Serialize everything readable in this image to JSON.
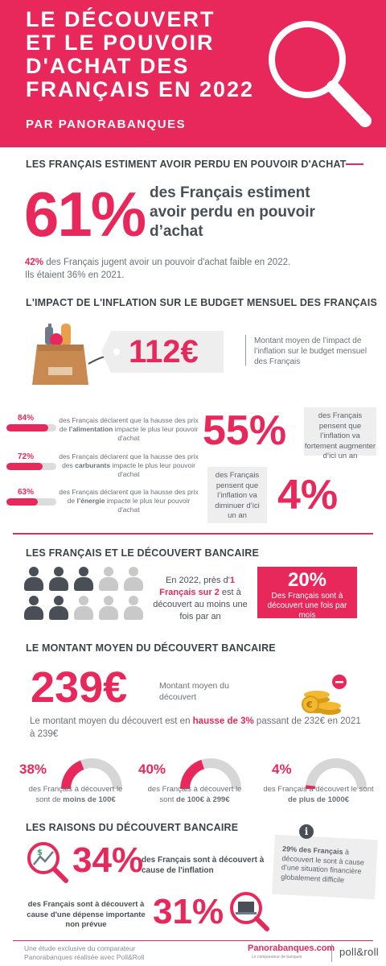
{
  "header": {
    "title_lines": [
      "LE DÉCOUVERT",
      "ET LE POUVOIR",
      "D'ACHAT DES",
      "FRANÇAIS EN 2022"
    ],
    "subtitle": "PAR PANORABANQUES"
  },
  "section1": {
    "title": "LES FRANÇAIS ESTIMENT AVOIR PERDU EN POUVOIR D'ACHAT",
    "big_value": "61%",
    "big_text": "des Français estiment avoir perdu en pouvoir d’achat",
    "stat_pct": "42%",
    "stat_text": " des Français jugent avoir un pouvoir d'achat faible",
    "stat_text_after": " en 2022.",
    "stat_line2": "Ils étaient 36% en 2021."
  },
  "section2": {
    "title": "L'IMPACT DE L'INFLATION SUR LE BUDGET MENSUEL DES FRANÇAIS",
    "amount": "112€",
    "amount_text": "Montant moyen de l’impact de l’inflation sur le budget mensuel des Français",
    "bars": [
      {
        "pct": "84%",
        "value": 84,
        "before": "des Français déclarent que la hausse des prix de ",
        "bold": "l’alimentation",
        "after": " impacte le plus leur pouvoir d'achat"
      },
      {
        "pct": "72%",
        "value": 72,
        "before": "des Français déclarent que la hausse des prix des ",
        "bold": "carburants",
        "after": " impacte le plus leur pouvoir d'achat"
      },
      {
        "pct": "63%",
        "value": 63,
        "before": "des Français déclarent que la hausse des prix de ",
        "bold": "l’énergie",
        "after": " impacte le plus leur pouvoir d'achat"
      }
    ],
    "increase_pct": "55%",
    "increase_text": "des Français pensent que l’inflation va fortement augmenter d’ici un an",
    "decrease_pct": "4%",
    "decrease_text": "des Français pensent que l’inflation va diminuer d’ici un an"
  },
  "section3": {
    "title": "LES FRANÇAIS ET LE DÉCOUVERT BANCAIRE",
    "people_total": 10,
    "people_highlighted": 5,
    "text_before": "En 2022, près d'",
    "text_highlight": "1 Français sur 2",
    "text_after": " est à découvert au moins une fois par an",
    "box_pct": "20%",
    "box_text": "Des Français sont à découvert une fois par mois"
  },
  "section4": {
    "title": "LE MONTANT MOYEN DU DÉCOUVERT BANCAIRE",
    "amount": "239€",
    "amount_text": "Montant moyen du découvert",
    "hausse_before": "Le montant moyen du découvert est en ",
    "hausse_bold": "hausse de 3%",
    "hausse_after": " passant de 232€ en 2021 à 239€",
    "gauges": [
      {
        "pct": "38%",
        "value": 38,
        "line1": "des Français à découvert le",
        "line2_before": "sont de ",
        "line2_bold": "moins de 100€"
      },
      {
        "pct": "40%",
        "value": 40,
        "line1": "des Français à découvert le",
        "line2_before": "sont ",
        "line2_bold": "de 100€ à 299€"
      },
      {
        "pct": "4%",
        "value": 4,
        "line1": "des Français à découvert le sont",
        "line2_before": "",
        "line2_bold": "de plus de 1000€"
      }
    ]
  },
  "section5": {
    "title": "LES RAISONS DU DÉCOUVERT BANCAIRE",
    "pct34": "34%",
    "text34": "des Français sont  à découvert à cause de l'inflation",
    "note_bold": "29% des Français",
    "note_text": " à découvert le sont à cause d’une situation financière globalement difficile",
    "pct31": "31%",
    "text31": "des Français sont à découvert à cause d'une dépense importante non prévue"
  },
  "footer": {
    "text": "Une étude exclusive du comparateur Panorabanques réalisée avec Poll&Roll",
    "logo_pano": "Panorabanques.com",
    "logo_pano_sub": "Le comparateur de banques",
    "logo_poll": "poll&roll"
  },
  "colors": {
    "accent": "#e8285a",
    "grey": "#eeeeee",
    "text": "#4a4f57"
  }
}
